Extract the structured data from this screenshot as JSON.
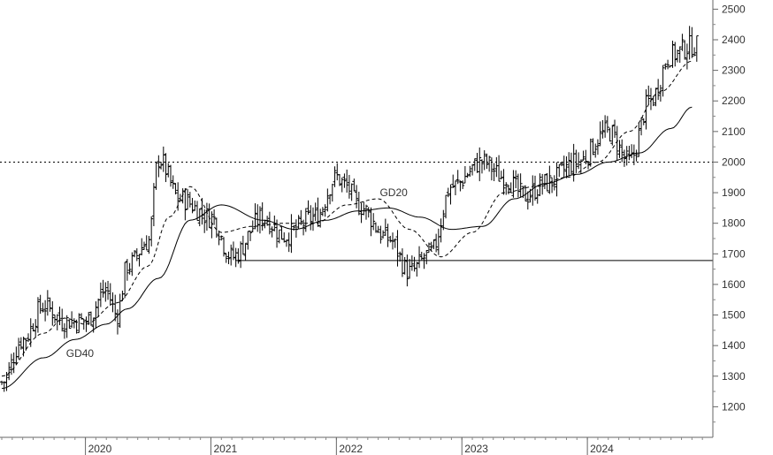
{
  "chart_data": {
    "type": "bar",
    "style": "ohlc-price-bars",
    "title": "",
    "xlabel": "",
    "ylabel": "",
    "ylim": [
      1100,
      2530
    ],
    "xlim": [
      "2019-05",
      "2024-12"
    ],
    "grid": false,
    "legend": "none",
    "y_ticks": [
      "1200",
      "1300",
      "1400",
      "1500",
      "1600",
      "1700",
      "1800",
      "1900",
      "2000",
      "2100",
      "2200",
      "2300",
      "2400",
      "2500"
    ],
    "x_ticks": [
      {
        "label": "2020",
        "date": "2020-01"
      },
      {
        "label": "2021",
        "date": "2021-01"
      },
      {
        "label": "2022",
        "date": "2022-01"
      },
      {
        "label": "2023",
        "date": "2023-01"
      },
      {
        "label": "2024",
        "date": "2024-01"
      }
    ],
    "annotations": [
      {
        "text": "GD40",
        "date": "2019-12",
        "value": 1375
      },
      {
        "text": "GD20",
        "date": "2022-06",
        "value": 1900
      }
    ],
    "reference_lines": [
      {
        "style": "dotted",
        "value": 2000,
        "from": "2019-05",
        "to": "2024-12"
      },
      {
        "style": "solid",
        "value": 1678,
        "from": "2021-01",
        "to": "2024-12"
      }
    ],
    "series": [
      {
        "name": "price",
        "kind": "ohlc",
        "anchor_dates": [
          "2019-05",
          "2019-07",
          "2019-09",
          "2019-11",
          "2020-01",
          "2020-03",
          "2020-04",
          "2020-05",
          "2020-07",
          "2020-08",
          "2020-10",
          "2021-01",
          "2021-03",
          "2021-06",
          "2021-08",
          "2021-11",
          "2022-01",
          "2022-02",
          "2022-03",
          "2022-06",
          "2022-08",
          "2022-10",
          "2022-12",
          "2023-03",
          "2023-05",
          "2023-07",
          "2023-09",
          "2023-12",
          "2024-03",
          "2024-05",
          "2024-07",
          "2024-09",
          "2024-11"
        ],
        "anchor_values": [
          1280,
          1420,
          1530,
          1480,
          1480,
          1580,
          1500,
          1660,
          1740,
          2010,
          1880,
          1820,
          1690,
          1820,
          1760,
          1820,
          1950,
          1920,
          1860,
          1750,
          1640,
          1700,
          1920,
          2000,
          1950,
          1890,
          1930,
          2000,
          2100,
          2000,
          2200,
          2350,
          2380
        ]
      },
      {
        "name": "GD20",
        "kind": "moving-average",
        "line": "dashed",
        "anchor_dates": [
          "2019-05",
          "2019-09",
          "2019-11",
          "2020-01",
          "2020-04",
          "2020-07",
          "2020-09",
          "2020-11",
          "2021-02",
          "2021-05",
          "2021-08",
          "2021-11",
          "2022-02",
          "2022-05",
          "2022-08",
          "2022-11",
          "2023-02",
          "2023-05",
          "2023-08",
          "2023-11",
          "2024-02",
          "2024-05",
          "2024-08",
          "2024-11"
        ],
        "anchor_values": [
          1300,
          1440,
          1490,
          1470,
          1540,
          1660,
          1820,
          1920,
          1770,
          1790,
          1800,
          1800,
          1860,
          1880,
          1780,
          1690,
          1770,
          1900,
          1920,
          1950,
          2000,
          2100,
          2230,
          2330
        ]
      },
      {
        "name": "GD40",
        "kind": "moving-average",
        "line": "solid",
        "anchor_dates": [
          "2019-05",
          "2019-09",
          "2019-12",
          "2020-03",
          "2020-05",
          "2020-08",
          "2020-11",
          "2021-02",
          "2021-06",
          "2021-09",
          "2021-12",
          "2022-03",
          "2022-06",
          "2022-09",
          "2022-12",
          "2023-03",
          "2023-06",
          "2023-09",
          "2023-12",
          "2024-03",
          "2024-06",
          "2024-09",
          "2024-11"
        ],
        "anchor_values": [
          1260,
          1360,
          1420,
          1470,
          1520,
          1620,
          1810,
          1860,
          1810,
          1780,
          1810,
          1840,
          1850,
          1820,
          1780,
          1790,
          1880,
          1930,
          1960,
          2000,
          2030,
          2110,
          2180
        ]
      }
    ]
  }
}
